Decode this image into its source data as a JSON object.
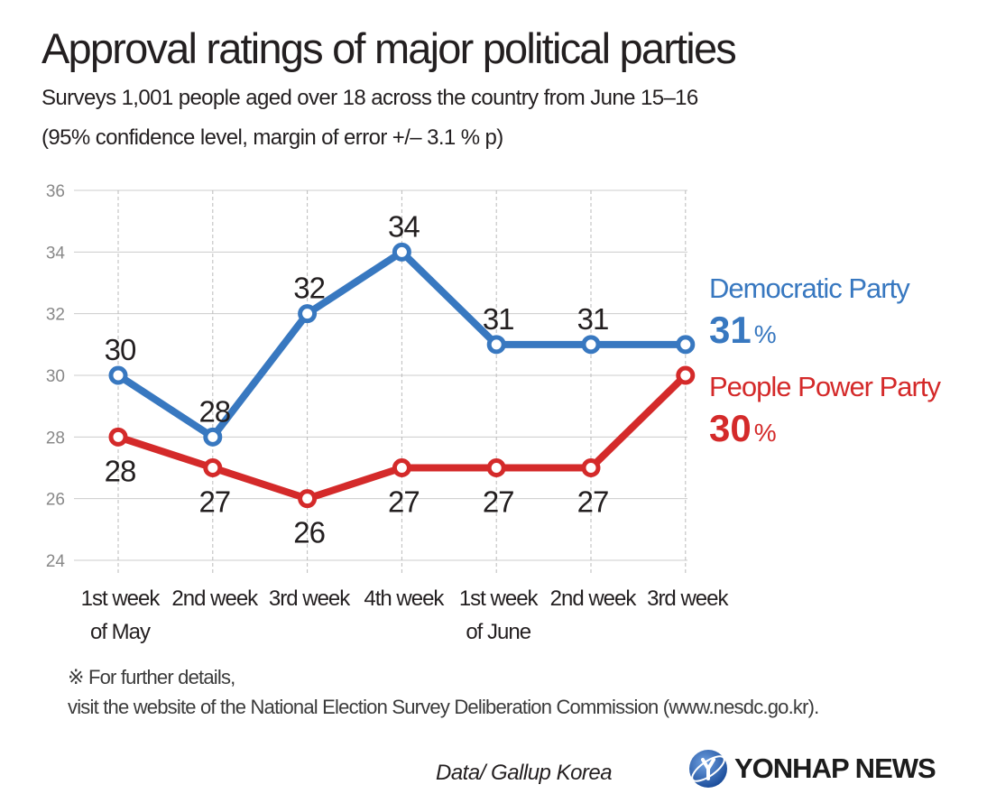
{
  "title": "Approval ratings of major political parties",
  "subtitle_line1": "Surveys 1,001 people aged over 18 across the country from June 15–16",
  "subtitle_line2": "(95% confidence level, margin of error +/– 3.1 % p)",
  "footnote_line1": "※ For further details,",
  "footnote_line2": "visit the website of the National Election Survey Deliberation Commission (www.nesdc.go.kr).",
  "source": "Data/ Gallup Korea",
  "logo_text": "YONHAP NEWS",
  "colors": {
    "democratic": "#3878c0",
    "ppp": "#d42a2a",
    "grid": "#cccccc",
    "tick": "#888888",
    "text": "#231f20"
  },
  "chart_data": {
    "type": "line",
    "title": "Approval ratings of major political parties",
    "categories": [
      [
        "1st week",
        "of May"
      ],
      [
        "2nd week"
      ],
      [
        "3rd week"
      ],
      [
        "4th week"
      ],
      [
        "1st week",
        "of June"
      ],
      [
        "2nd week"
      ],
      [
        "3rd week"
      ]
    ],
    "y_ticks": [
      24,
      26,
      28,
      30,
      32,
      34,
      36
    ],
    "ylim": [
      24,
      36
    ],
    "grid": true,
    "series": [
      {
        "name": "Democratic Party",
        "key": "democratic",
        "latest_value": "31",
        "unit": "%",
        "values": [
          30,
          28,
          32,
          34,
          31,
          31,
          31
        ]
      },
      {
        "name": "People Power Party",
        "key": "ppp",
        "latest_value": "30",
        "unit": "%",
        "values": [
          28,
          27,
          26,
          27,
          27,
          27,
          30
        ]
      }
    ]
  }
}
